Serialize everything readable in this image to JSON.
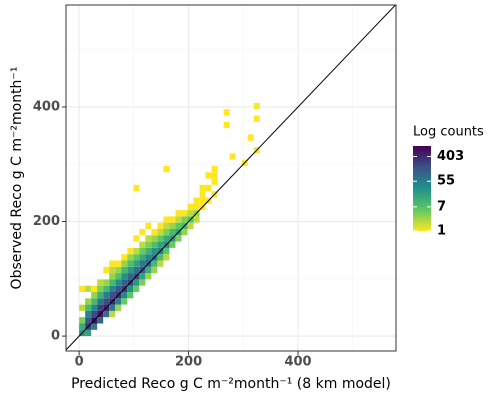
{
  "chart_data": {
    "type": "bin2d",
    "x_label": "Predicted Reco g C m⁻²month⁻¹ (8 km model)",
    "y_label": "Observed Reco g C m⁻²month⁻¹",
    "legend_title": "Log counts",
    "xlim": [
      -24,
      579
    ],
    "ylim": [
      -26,
      578
    ],
    "xticks": [
      0,
      200,
      400
    ],
    "yticks": [
      0,
      200,
      400
    ],
    "minor_xticks": [
      100,
      300,
      500
    ],
    "minor_yticks": [
      100,
      300,
      500
    ],
    "grid": true,
    "binwidth": 11,
    "reference_line": {
      "slope": 1,
      "intercept": 0,
      "color": "#000000"
    },
    "color_scale": "log",
    "color_lim": [
      1,
      940
    ],
    "color_ticks": [
      1,
      7,
      55,
      403
    ],
    "palette": [
      "#fde725",
      "#5ec962",
      "#21918c",
      "#3b528b",
      "#440154"
    ],
    "x": [
      5.5,
      5.5,
      5.5,
      5.5,
      5.5,
      16.5,
      16.5,
      16.5,
      16.5,
      16.5,
      16.5,
      16.5,
      27.5,
      27.5,
      27.5,
      27.5,
      27.5,
      27.5,
      27.5,
      38.5,
      38.5,
      38.5,
      38.5,
      38.5,
      38.5,
      38.5,
      49.5,
      49.5,
      49.5,
      49.5,
      49.5,
      49.5,
      49.5,
      60.5,
      60.5,
      60.5,
      60.5,
      60.5,
      60.5,
      60.5,
      60.5,
      60.5,
      71.5,
      71.5,
      71.5,
      71.5,
      71.5,
      71.5,
      71.5,
      71.5,
      82.5,
      82.5,
      82.5,
      82.5,
      82.5,
      82.5,
      82.5,
      82.5,
      93.5,
      93.5,
      93.5,
      93.5,
      93.5,
      93.5,
      93.5,
      93.5,
      104.5,
      104.5,
      104.5,
      104.5,
      104.5,
      104.5,
      104.5,
      104.5,
      104.5,
      115.5,
      115.5,
      115.5,
      115.5,
      115.5,
      115.5,
      115.5,
      115.5,
      126.5,
      126.5,
      126.5,
      126.5,
      126.5,
      126.5,
      126.5,
      126.5,
      137.5,
      137.5,
      137.5,
      137.5,
      137.5,
      137.5,
      137.5,
      148.5,
      148.5,
      148.5,
      148.5,
      148.5,
      148.5,
      148.5,
      159.5,
      159.5,
      159.5,
      159.5,
      159.5,
      159.5,
      159.5,
      159.5,
      170.5,
      170.5,
      170.5,
      170.5,
      170.5,
      181.5,
      181.5,
      181.5,
      181.5,
      181.5,
      192.5,
      192.5,
      192.5,
      192.5,
      203.5,
      203.5,
      203.5,
      203.5,
      214.5,
      214.5,
      214.5,
      214.5,
      225.5,
      225.5,
      225.5,
      225.5,
      236.5,
      236.5,
      236.5,
      247.5,
      247.5,
      247.5,
      247.5,
      269.5,
      269.5,
      280.5,
      302.5,
      313.5,
      324.5,
      324.5,
      324.5
    ],
    "y": [
      5.5,
      16.5,
      27.5,
      49.5,
      82.5,
      5.5,
      16.5,
      27.5,
      38.5,
      49.5,
      60.5,
      82.5,
      16.5,
      27.5,
      38.5,
      49.5,
      60.5,
      71.5,
      82.5,
      27.5,
      38.5,
      49.5,
      60.5,
      71.5,
      82.5,
      93.5,
      38.5,
      49.5,
      60.5,
      71.5,
      82.5,
      93.5,
      115.5,
      38.5,
      49.5,
      60.5,
      71.5,
      82.5,
      93.5,
      104.5,
      115.5,
      126.5,
      49.5,
      60.5,
      71.5,
      82.5,
      93.5,
      104.5,
      115.5,
      126.5,
      60.5,
      71.5,
      82.5,
      93.5,
      104.5,
      115.5,
      126.5,
      137.5,
      71.5,
      82.5,
      93.5,
      104.5,
      115.5,
      126.5,
      137.5,
      148.5,
      82.5,
      93.5,
      104.5,
      115.5,
      126.5,
      137.5,
      148.5,
      170.5,
      258.5,
      93.5,
      104.5,
      115.5,
      126.5,
      137.5,
      148.5,
      159.5,
      181.5,
      104.5,
      115.5,
      126.5,
      137.5,
      148.5,
      159.5,
      170.5,
      192.5,
      115.5,
      126.5,
      137.5,
      148.5,
      159.5,
      170.5,
      181.5,
      126.5,
      137.5,
      148.5,
      159.5,
      170.5,
      181.5,
      192.5,
      137.5,
      148.5,
      159.5,
      170.5,
      181.5,
      192.5,
      203.5,
      291.5,
      159.5,
      170.5,
      181.5,
      192.5,
      203.5,
      170.5,
      181.5,
      192.5,
      203.5,
      214.5,
      181.5,
      192.5,
      203.5,
      214.5,
      192.5,
      203.5,
      214.5,
      225.5,
      203.5,
      214.5,
      225.5,
      236.5,
      225.5,
      236.5,
      247.5,
      258.5,
      236.5,
      258.5,
      280.5,
      247.5,
      269.5,
      280.5,
      291.5,
      368.5,
      390.5,
      313.5,
      302.5,
      346.5,
      324.5,
      379.5,
      401.5
    ],
    "values": [
      30,
      15,
      4,
      2,
      1,
      20,
      300,
      150,
      40,
      10,
      3,
      2,
      60,
      700,
      200,
      40,
      10,
      3,
      1,
      100,
      600,
      250,
      60,
      12,
      4,
      2,
      80,
      500,
      200,
      50,
      10,
      3,
      1,
      2,
      60,
      400,
      180,
      40,
      10,
      3,
      2,
      1,
      3,
      50,
      350,
      150,
      35,
      8,
      3,
      1,
      5,
      40,
      300,
      120,
      30,
      10,
      3,
      1,
      6,
      30,
      250,
      100,
      25,
      8,
      3,
      1,
      5,
      25,
      200,
      80,
      20,
      6,
      2,
      1,
      1,
      4,
      20,
      150,
      60,
      15,
      5,
      2,
      1,
      3,
      15,
      100,
      45,
      12,
      4,
      2,
      1,
      3,
      10,
      70,
      30,
      8,
      3,
      1,
      2,
      8,
      50,
      20,
      6,
      2,
      1,
      2,
      6,
      35,
      15,
      4,
      2,
      1,
      1,
      5,
      25,
      10,
      3,
      1,
      4,
      18,
      6,
      2,
      1,
      3,
      10,
      4,
      1,
      2,
      6,
      2,
      1,
      2,
      3,
      1,
      1,
      1,
      1,
      1,
      1,
      1,
      1,
      1,
      1,
      1,
      1,
      1,
      1,
      1,
      1,
      1,
      1,
      1,
      1,
      1
    ]
  }
}
